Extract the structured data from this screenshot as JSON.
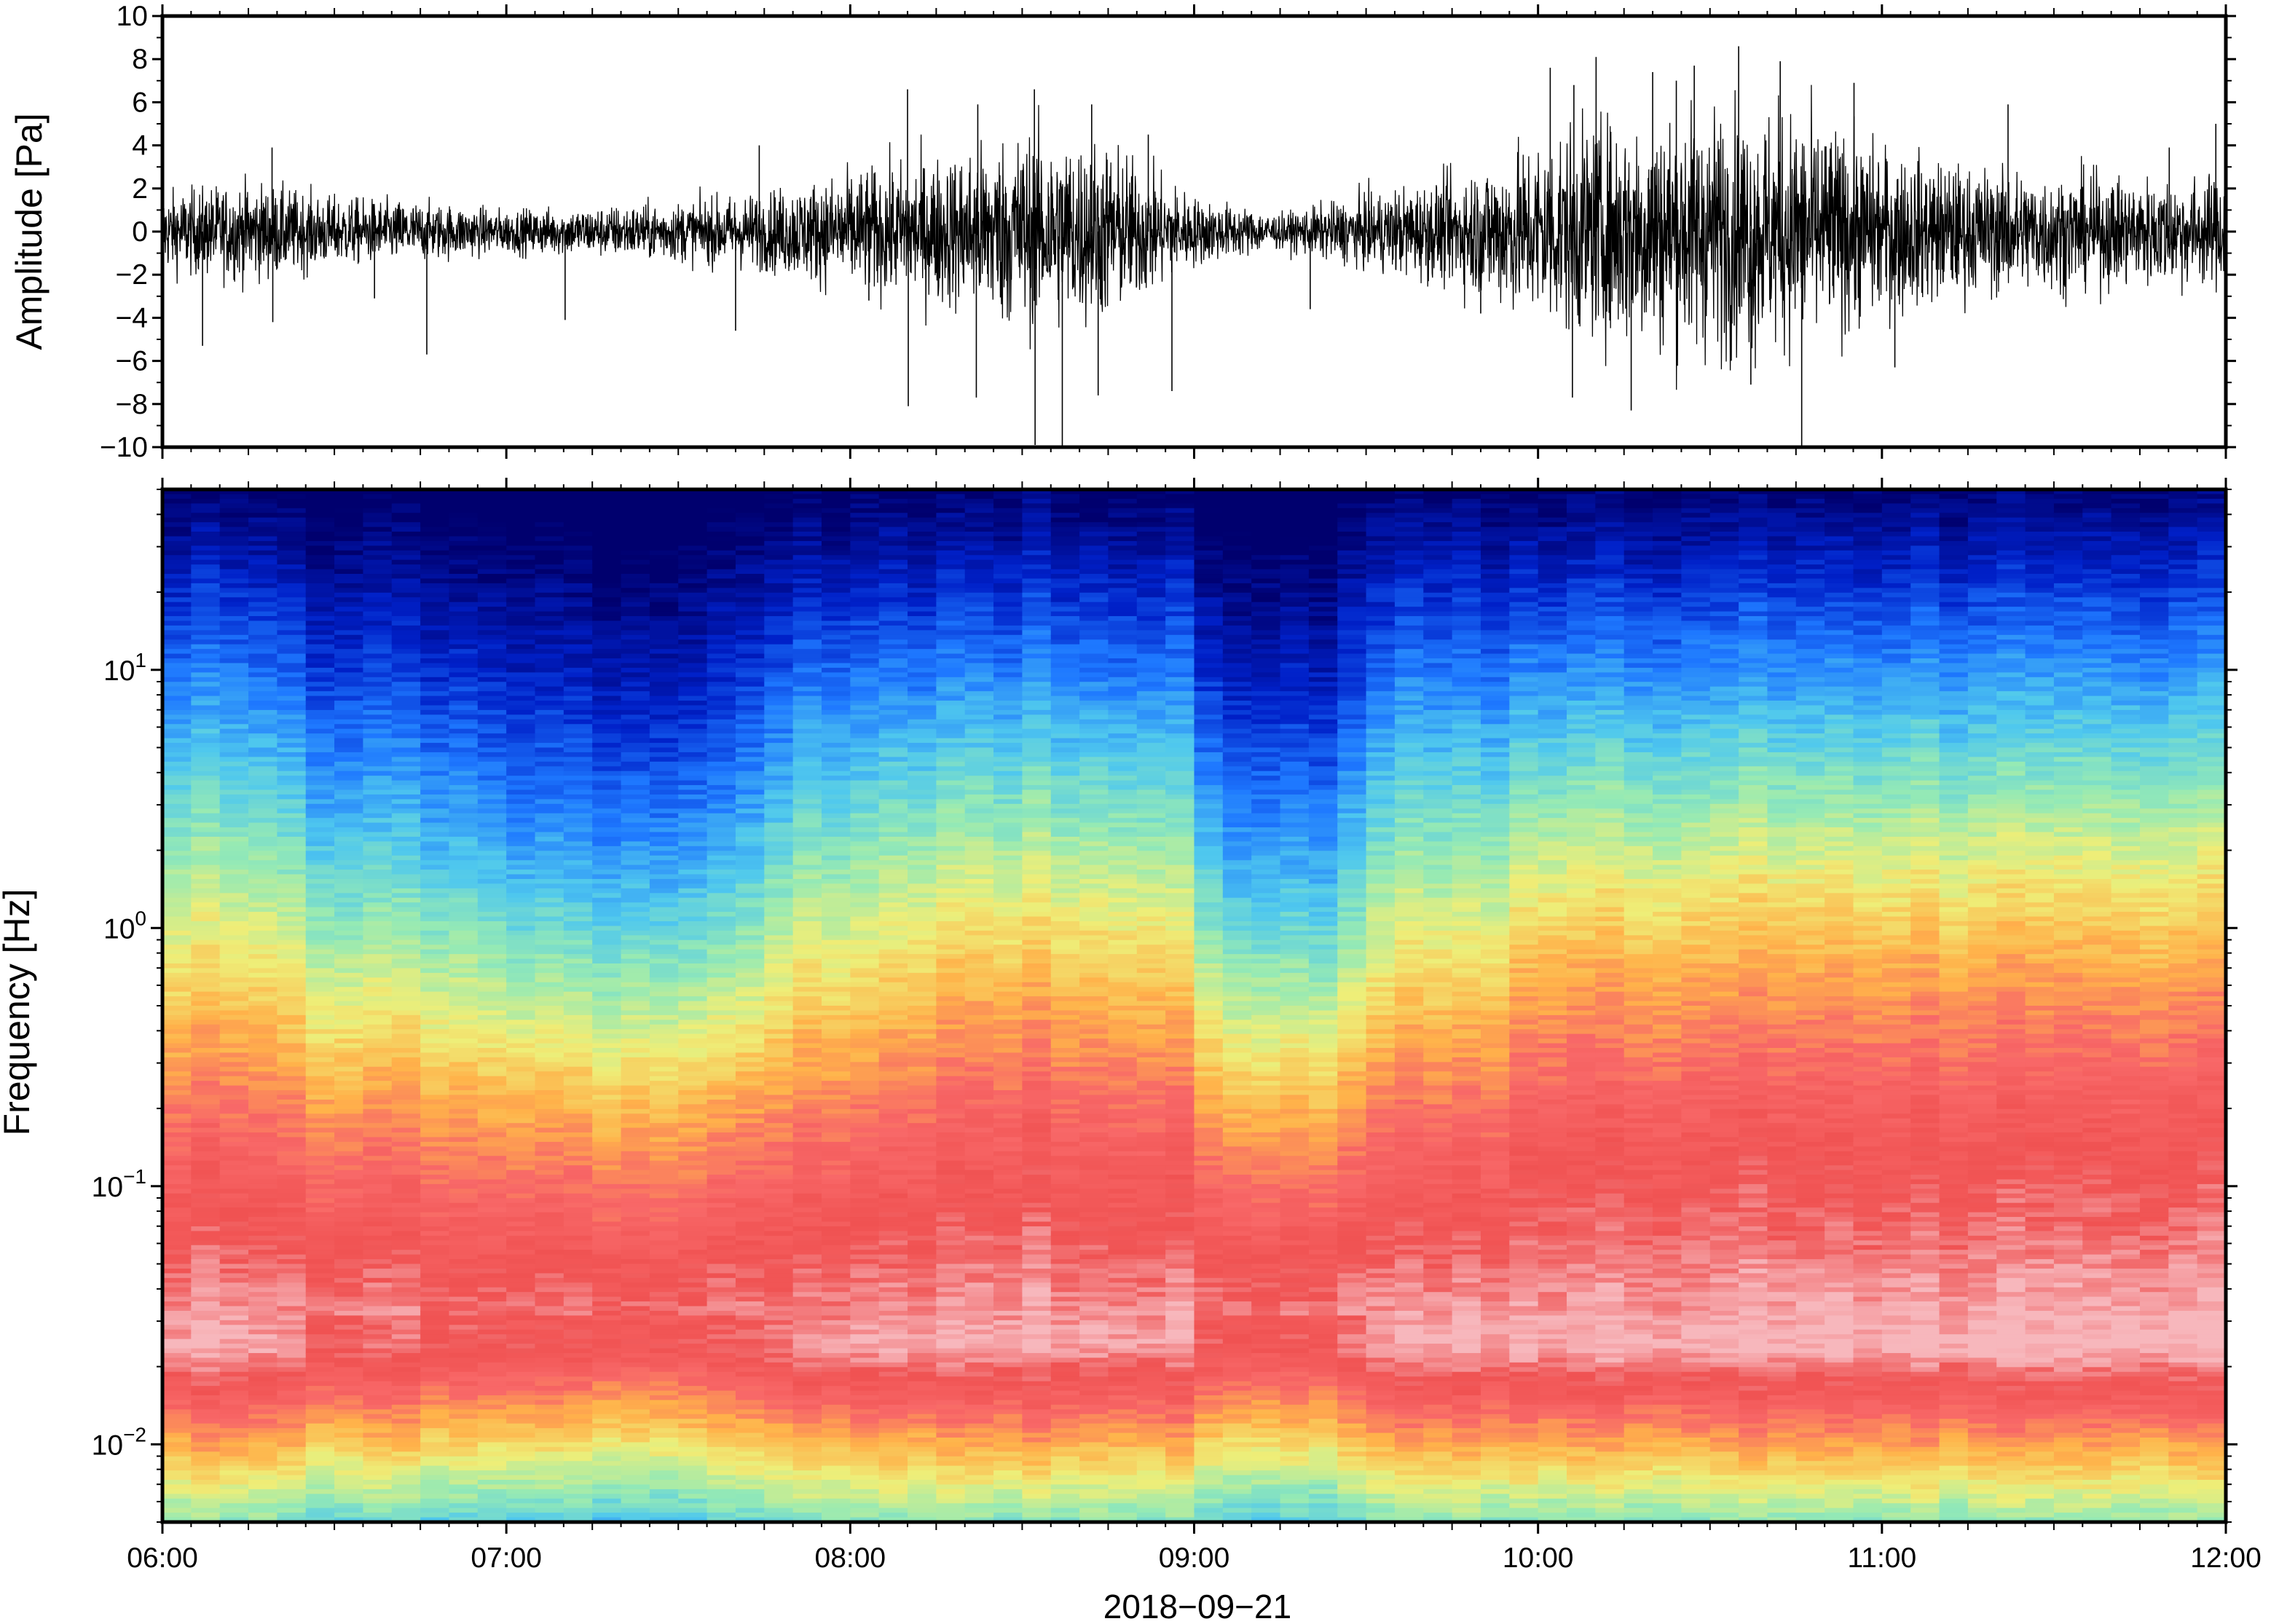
{
  "chart_data": [
    {
      "type": "line",
      "panel": "waveform",
      "ylabel": "Amplitude [Pa]",
      "ylim": [
        -10,
        10
      ],
      "yticks": [
        -10,
        -8,
        -6,
        -4,
        -2,
        0,
        2,
        4,
        6,
        8,
        10
      ],
      "ytick_labels": [
        "−10",
        "−8",
        "−6",
        "−4",
        "−2",
        "0",
        "2",
        "4",
        "6",
        "8",
        "10"
      ],
      "x_range": [
        "06:00",
        "12:00"
      ],
      "envelope": [
        {
          "t": "06:00",
          "amp": 1.6
        },
        {
          "t": "06:15",
          "amp": 2.0
        },
        {
          "t": "06:30",
          "amp": 1.4
        },
        {
          "t": "06:45",
          "amp": 1.2
        },
        {
          "t": "07:00",
          "amp": 0.9
        },
        {
          "t": "07:15",
          "amp": 1.0
        },
        {
          "t": "07:30",
          "amp": 1.2
        },
        {
          "t": "07:45",
          "amp": 1.6
        },
        {
          "t": "08:00",
          "amp": 2.4
        },
        {
          "t": "08:15",
          "amp": 3.0
        },
        {
          "t": "08:30",
          "amp": 4.0
        },
        {
          "t": "08:45",
          "amp": 3.6
        },
        {
          "t": "09:00",
          "amp": 1.4
        },
        {
          "t": "09:15",
          "amp": 0.7
        },
        {
          "t": "09:30",
          "amp": 1.5
        },
        {
          "t": "09:45",
          "amp": 2.2
        },
        {
          "t": "10:00",
          "amp": 3.8
        },
        {
          "t": "10:15",
          "amp": 4.6
        },
        {
          "t": "10:30",
          "amp": 5.0
        },
        {
          "t": "10:45",
          "amp": 4.8
        },
        {
          "t": "11:00",
          "amp": 3.4
        },
        {
          "t": "11:15",
          "amp": 2.6
        },
        {
          "t": "11:30",
          "amp": 2.4
        },
        {
          "t": "11:45",
          "amp": 2.2
        },
        {
          "t": "12:00",
          "amp": 2.2
        }
      ],
      "spikes": [
        {
          "t": "06:07",
          "v": -5.3
        },
        {
          "t": "06:19",
          "v": 3.9
        },
        {
          "t": "06:19",
          "v": -4.2
        },
        {
          "t": "06:37",
          "v": -3.1
        },
        {
          "t": "06:46",
          "v": -5.7
        },
        {
          "t": "07:10",
          "v": -4.1
        },
        {
          "t": "07:40",
          "v": -4.6
        },
        {
          "t": "07:44",
          "v": 4.0
        },
        {
          "t": "08:03",
          "v": -3.2
        },
        {
          "t": "08:10",
          "v": 6.6
        },
        {
          "t": "08:10",
          "v": -8.1
        },
        {
          "t": "08:22",
          "v": 5.9
        },
        {
          "t": "08:22",
          "v": -7.7
        },
        {
          "t": "08:32",
          "v": 6.6
        },
        {
          "t": "08:32",
          "v": -9.9
        },
        {
          "t": "08:37",
          "v": -10.0
        },
        {
          "t": "08:42",
          "v": 5.9
        },
        {
          "t": "08:43",
          "v": -7.6
        },
        {
          "t": "08:52",
          "v": 4.5
        },
        {
          "t": "08:56",
          "v": -7.4
        },
        {
          "t": "09:20",
          "v": -3.6
        },
        {
          "t": "09:50",
          "v": -3.8
        },
        {
          "t": "10:02",
          "v": 7.6
        },
        {
          "t": "10:06",
          "v": 6.8
        },
        {
          "t": "10:06",
          "v": -7.7
        },
        {
          "t": "10:10",
          "v": 8.1
        },
        {
          "t": "10:16",
          "v": -8.3
        },
        {
          "t": "10:20",
          "v": 7.4
        },
        {
          "t": "10:24",
          "v": 7.0
        },
        {
          "t": "10:27",
          "v": 7.7
        },
        {
          "t": "10:35",
          "v": 8.6
        },
        {
          "t": "10:37",
          "v": -7.1
        },
        {
          "t": "10:42",
          "v": 7.9
        },
        {
          "t": "10:46",
          "v": -10.0
        },
        {
          "t": "10:55",
          "v": 6.9
        },
        {
          "t": "11:02",
          "v": -6.3
        },
        {
          "t": "11:22",
          "v": 5.9
        },
        {
          "t": "11:50",
          "v": 3.9
        },
        {
          "t": "11:58",
          "v": 5.0
        }
      ]
    },
    {
      "type": "heatmap",
      "panel": "spectrogram",
      "ylabel": "Frequency [Hz]",
      "xlabel": "2018−09−21",
      "y_scale": "log",
      "ylim": [
        0.005,
        50
      ],
      "yticks": [
        {
          "value": 0.01,
          "base": "10",
          "exp": "−2"
        },
        {
          "value": 0.1,
          "base": "10",
          "exp": "−1"
        },
        {
          "value": 1,
          "base": "10",
          "exp": "0"
        },
        {
          "value": 10,
          "base": "10",
          "exp": "1"
        }
      ],
      "x_ticks": [
        "06:00",
        "07:00",
        "08:00",
        "09:00",
        "10:00",
        "11:00",
        "12:00"
      ],
      "colormap": [
        "#00006e",
        "#0020c8",
        "#1e78ff",
        "#4fc8ee",
        "#96eab4",
        "#eeee78",
        "#ffb24a",
        "#f86868",
        "#f05252",
        "#f7b8bd"
      ],
      "quiet_intervals": [
        {
          "start": "07:00",
          "end": "07:40",
          "depth": 1.0
        },
        {
          "start": "09:05",
          "end": "09:25",
          "depth": 1.0
        },
        {
          "start": "06:30",
          "end": "07:00",
          "depth": 0.6
        }
      ],
      "loud_intervals": [
        {
          "start": "10:00",
          "end": "12:00",
          "level": 1.0
        },
        {
          "start": "08:15",
          "end": "08:55",
          "level": 0.6
        }
      ]
    }
  ]
}
